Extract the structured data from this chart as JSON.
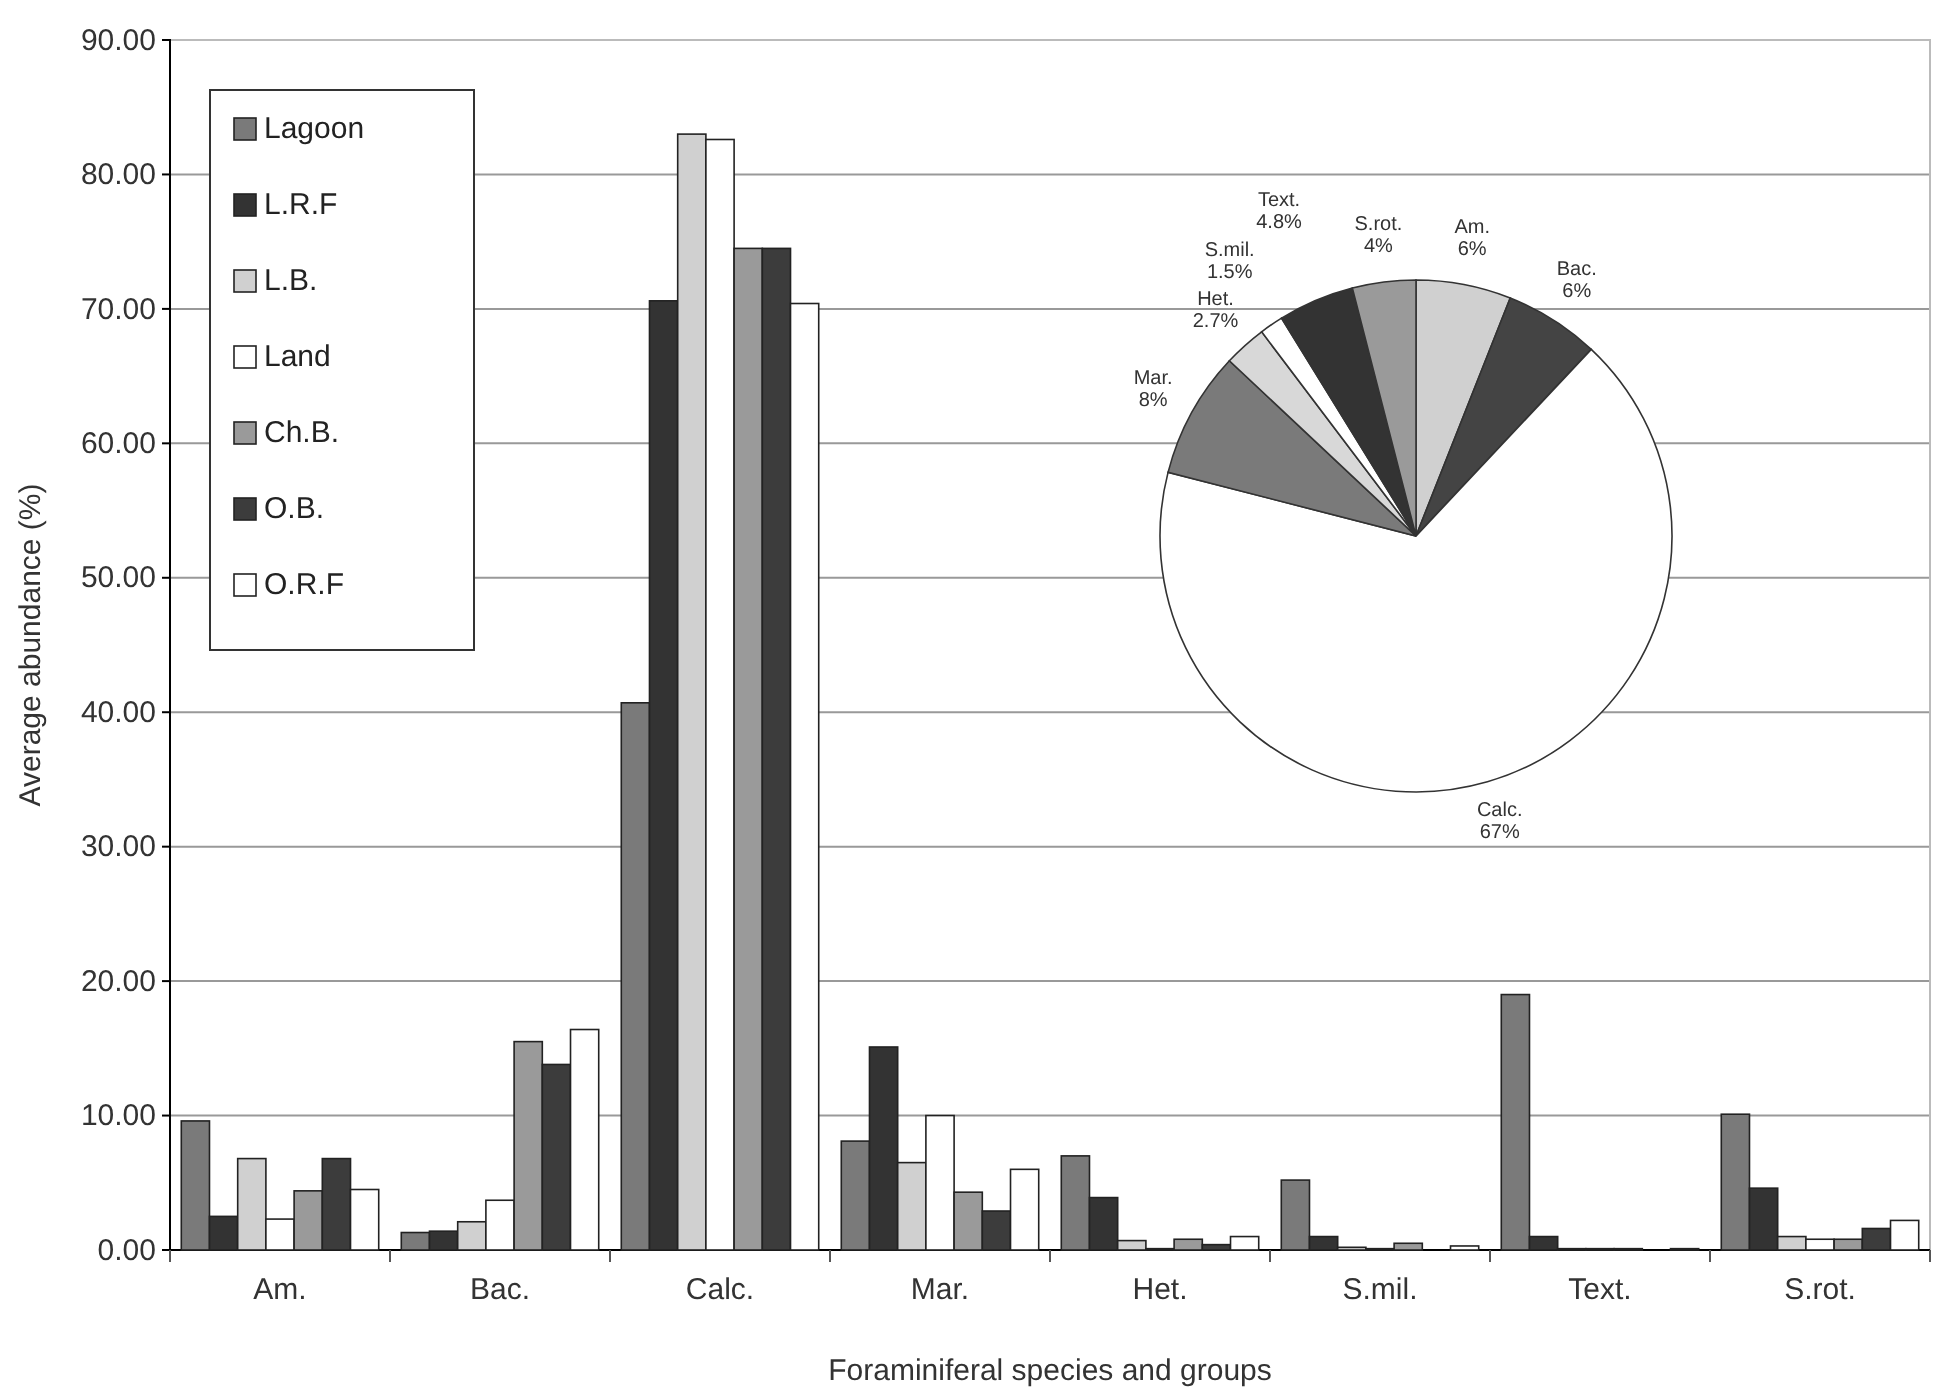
{
  "chart_data": [
    {
      "type": "bar",
      "xlabel": "Foraminiferal species and groups",
      "ylabel": "Average abundance (%)",
      "categories": [
        "Am.",
        "Bac.",
        "Calc.",
        "Mar.",
        "Het.",
        "S.mil.",
        "Text.",
        "S.rot."
      ],
      "series": [
        {
          "name": "Lagoon",
          "color": "#7a7a7a",
          "values": [
            9.6,
            1.3,
            40.7,
            8.1,
            7.0,
            5.2,
            19.0,
            10.1
          ]
        },
        {
          "name": "L.R.F",
          "color": "#333333",
          "values": [
            2.5,
            1.4,
            70.6,
            15.1,
            3.9,
            1.0,
            1.0,
            4.6
          ]
        },
        {
          "name": "L.B.",
          "color": "#d0d0d0",
          "values": [
            6.8,
            2.1,
            83.0,
            6.5,
            0.7,
            0.2,
            0.1,
            1.0
          ]
        },
        {
          "name": "Land",
          "color": "#ffffff",
          "values": [
            2.3,
            3.7,
            82.6,
            10.0,
            0.1,
            0.1,
            0.1,
            0.8
          ]
        },
        {
          "name": "Ch.B.",
          "color": "#9a9a9a",
          "values": [
            4.4,
            15.5,
            74.5,
            4.3,
            0.8,
            0.5,
            0.1,
            0.8
          ]
        },
        {
          "name": "O.B.",
          "color": "#3c3c3c",
          "values": [
            6.8,
            13.8,
            74.5,
            2.9,
            0.4,
            null,
            null,
            1.6
          ]
        },
        {
          "name": "O.R.F",
          "color": "#ffffff",
          "values": [
            4.5,
            16.4,
            70.4,
            6.0,
            1.0,
            0.3,
            0.1,
            2.2
          ]
        }
      ],
      "ylim": [
        0,
        90
      ],
      "yticks": [
        {
          "value": 0,
          "label": "0.00"
        },
        {
          "value": 10,
          "label": "10.00"
        },
        {
          "value": 20,
          "label": "20.00"
        },
        {
          "value": 30,
          "label": "30.00"
        },
        {
          "value": 40,
          "label": "40.00"
        },
        {
          "value": 50,
          "label": "50.00"
        },
        {
          "value": 60,
          "label": "60.00"
        },
        {
          "value": 70,
          "label": "70.00"
        },
        {
          "value": 80,
          "label": "80.00"
        },
        {
          "value": 90,
          "label": "90.00"
        }
      ],
      "grid": "y",
      "legend": "top left"
    },
    {
      "type": "pie",
      "categories": [
        "Am.",
        "Bac.",
        "Calc.",
        "Mar.",
        "Het.",
        "S.mil.",
        "Text.",
        "S.rot."
      ],
      "values": [
        6,
        6,
        67,
        8,
        2.7,
        1.5,
        4.8,
        4
      ],
      "colors": [
        "#d0d0d0",
        "#444444",
        "#ffffff",
        "#7a7a7a",
        "#d8d8d8",
        "#ffffff",
        "#333333",
        "#9a9a9a"
      ],
      "value_labels": [
        "6%",
        "6%",
        "67%",
        "8%",
        "2.7%",
        "1.5%",
        "4.8%",
        "4%"
      ]
    }
  ]
}
